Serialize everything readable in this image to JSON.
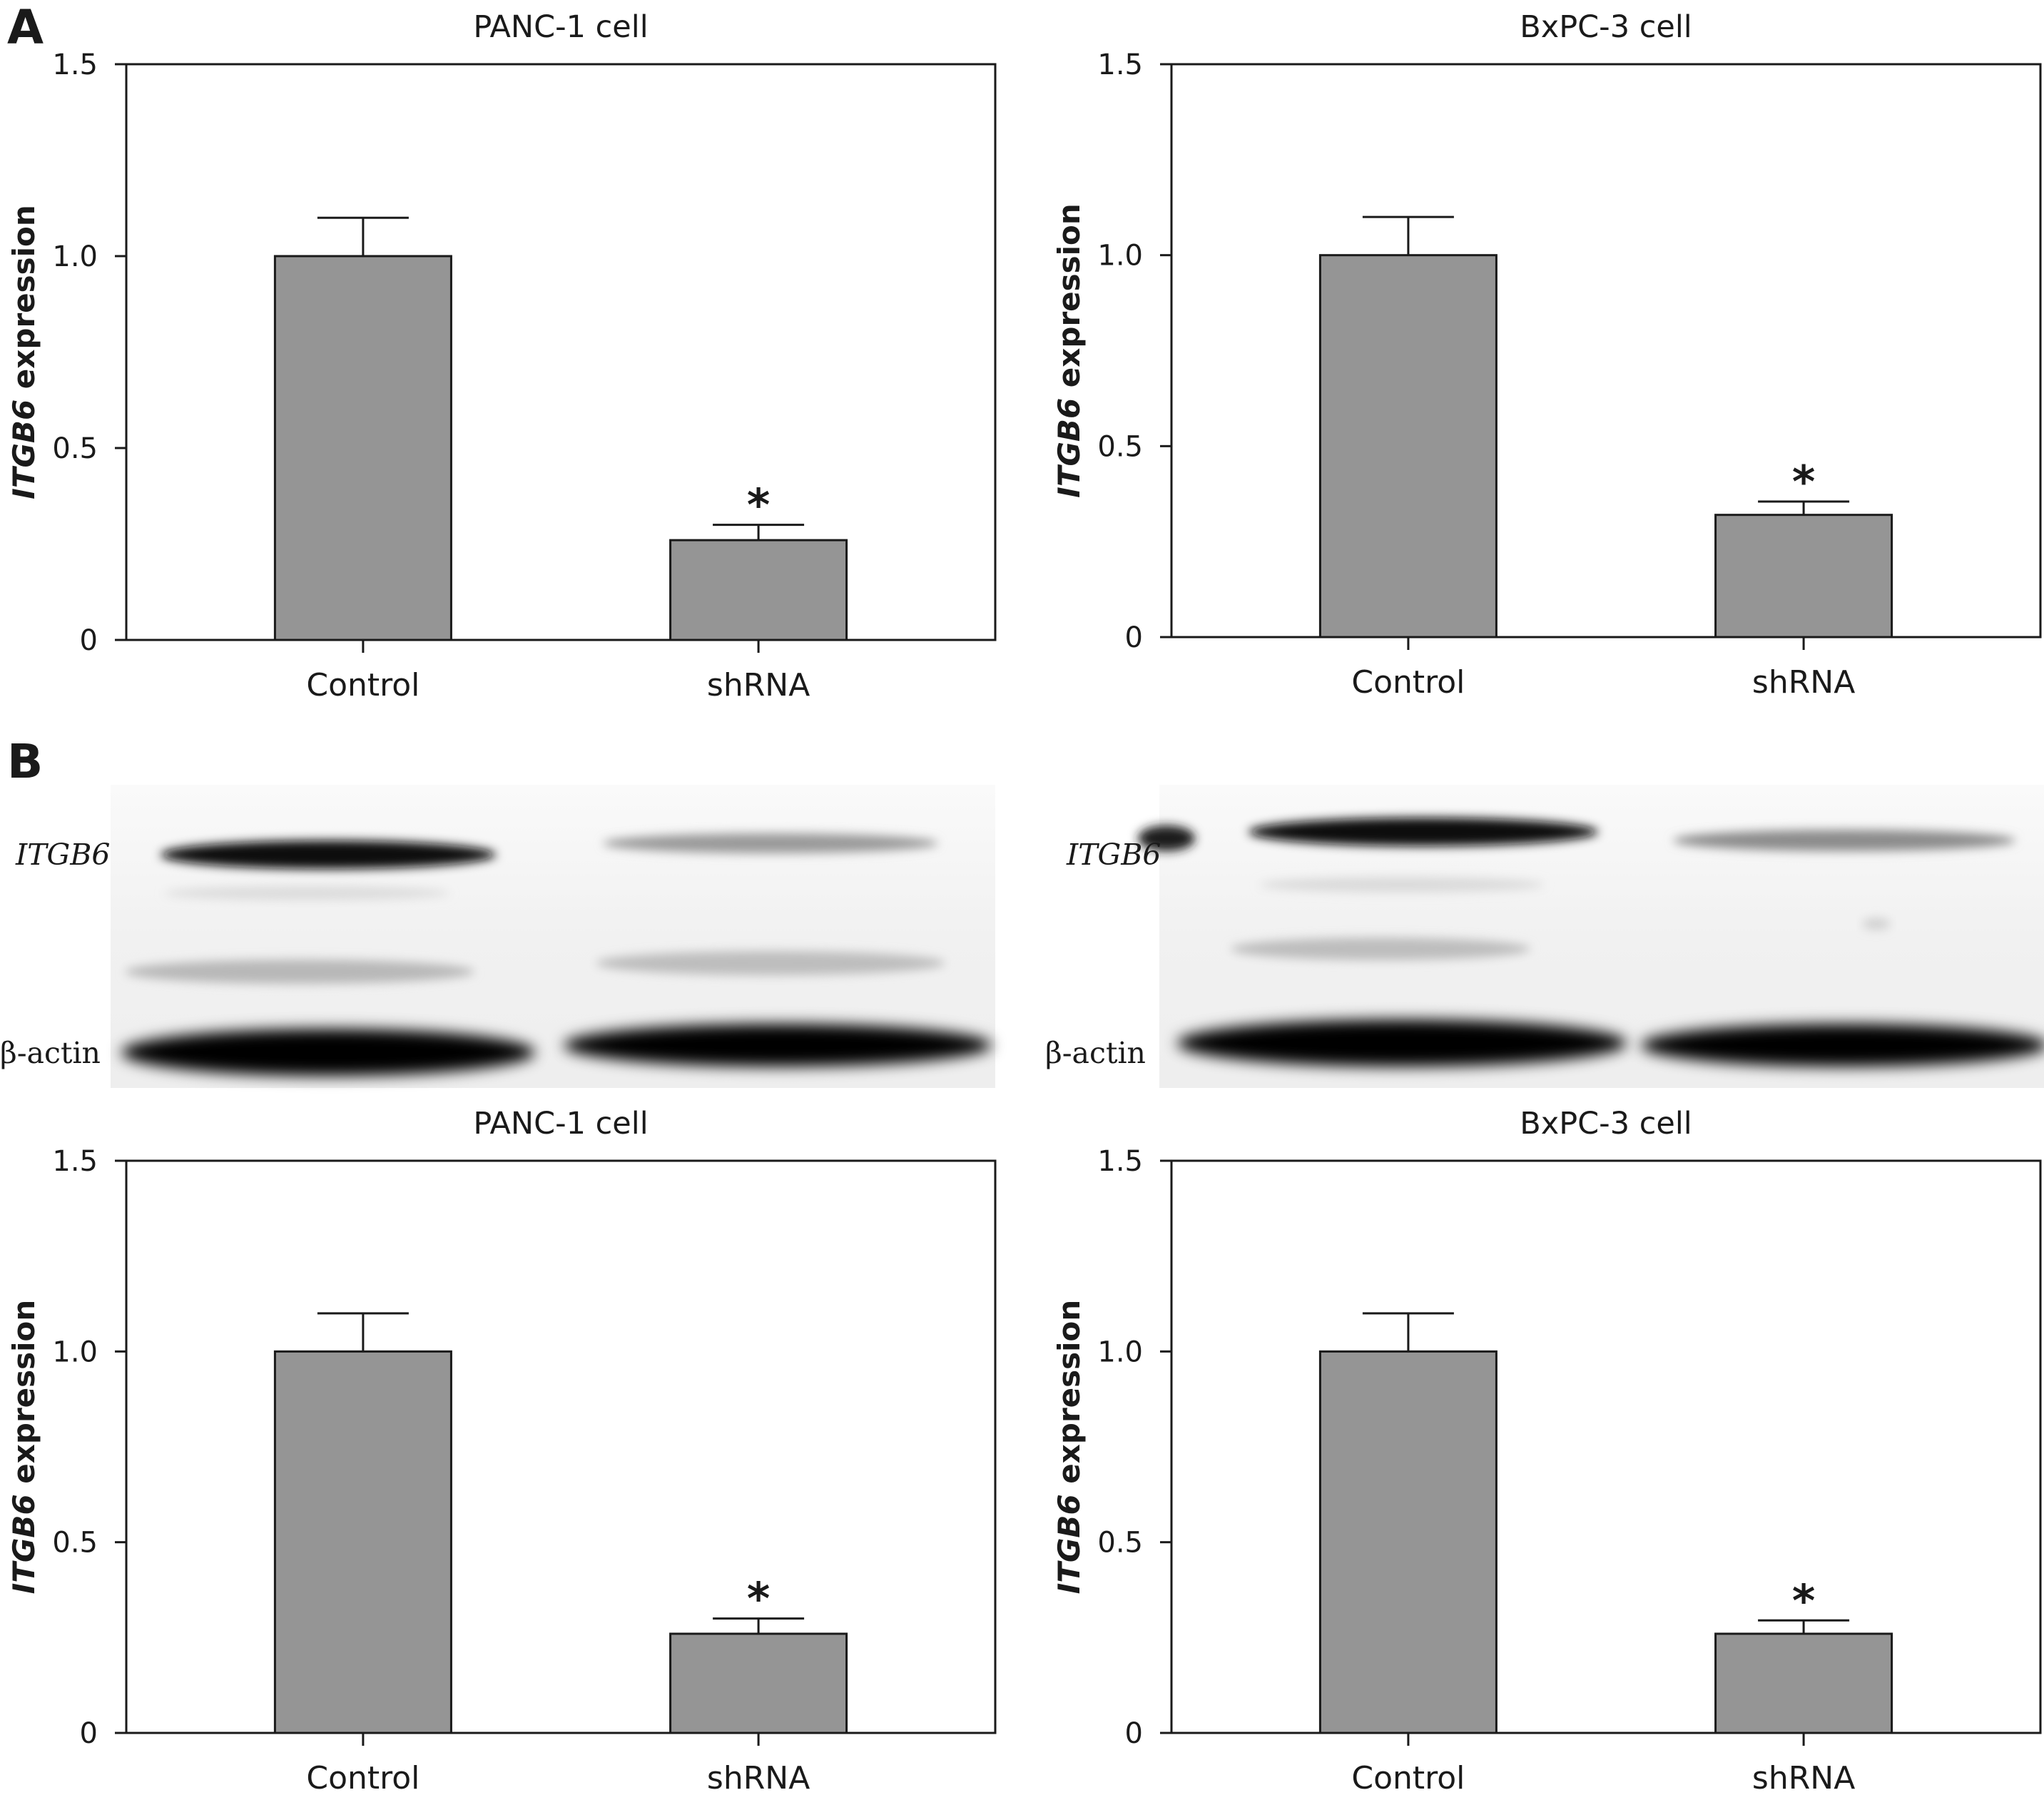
{
  "panels": [
    {
      "letter": "A"
    },
    {
      "letter": "B"
    }
  ],
  "blots": [
    {
      "band_labels": [
        "ITGB6",
        "β-actin"
      ]
    },
    {
      "band_labels": [
        "ITGB6",
        "β-actin"
      ]
    }
  ],
  "chart_data": [
    {
      "type": "bar",
      "title": "PANC-1 cell",
      "categories": [
        "Control",
        "shRNA"
      ],
      "values": [
        1.0,
        0.26
      ],
      "errors": [
        0.1,
        0.04
      ],
      "significance": [
        "",
        "*"
      ],
      "ylabel_gene": "ITGB6",
      "ylabel_rest": " expression",
      "ylim": [
        0,
        1.5
      ],
      "yticks": [
        "0",
        "0.5",
        "1.0",
        "1.5"
      ],
      "grid": false,
      "bar_color": "#959595"
    },
    {
      "type": "bar",
      "title": "BxPC-3 cell",
      "categories": [
        "Control",
        "shRNA"
      ],
      "values": [
        1.0,
        0.32
      ],
      "errors": [
        0.1,
        0.035
      ],
      "significance": [
        "",
        "*"
      ],
      "ylabel_gene": "ITGB6",
      "ylabel_rest": " expression",
      "ylim": [
        0,
        1.5
      ],
      "yticks": [
        "0",
        "0.5",
        "1.0",
        "1.5"
      ],
      "grid": false,
      "bar_color": "#959595"
    },
    {
      "type": "bar",
      "title": "PANC-1 cell",
      "categories": [
        "Control",
        "shRNA"
      ],
      "values": [
        1.0,
        0.26
      ],
      "errors": [
        0.1,
        0.04
      ],
      "significance": [
        "",
        "*"
      ],
      "ylabel_gene": "ITGB6",
      "ylabel_rest": " expression",
      "ylim": [
        0,
        1.5
      ],
      "yticks": [
        "0",
        "0.5",
        "1.0",
        "1.5"
      ],
      "grid": false,
      "bar_color": "#959595"
    },
    {
      "type": "bar",
      "title": "BxPC-3 cell",
      "categories": [
        "Control",
        "shRNA"
      ],
      "values": [
        1.0,
        0.26
      ],
      "errors": [
        0.1,
        0.035
      ],
      "significance": [
        "",
        "*"
      ],
      "ylabel_gene": "ITGB6",
      "ylabel_rest": " expression",
      "ylim": [
        0,
        1.5
      ],
      "yticks": [
        "0",
        "0.5",
        "1.0",
        "1.5"
      ],
      "grid": false,
      "bar_color": "#959595"
    }
  ]
}
